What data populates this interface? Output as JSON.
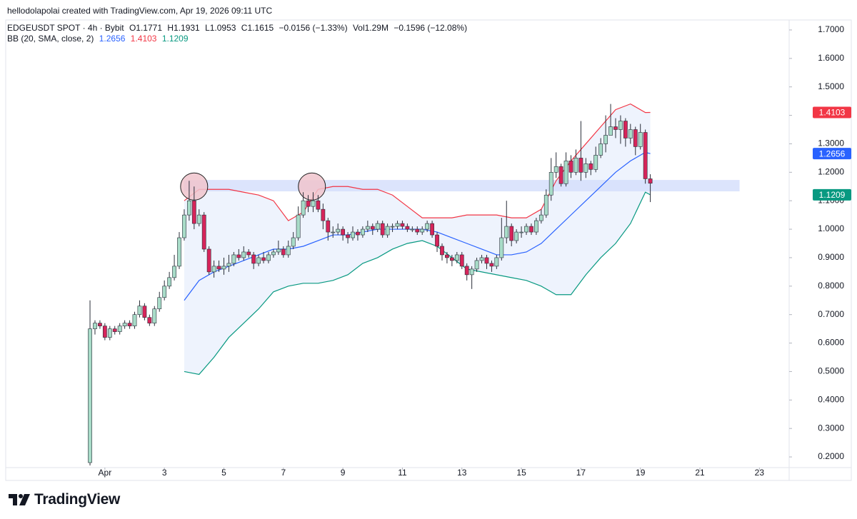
{
  "header": {
    "attribution": "hellodolapolai created with TradingView.com, Apr 19, 2026 09:11 UTC"
  },
  "chart_data": {
    "type": "candlestick",
    "title": "EDGEUSDT SPOT · 4h · Bybit",
    "ohlc_labels": [
      "O1.1771",
      "H1.1931",
      "L1.0953",
      "C1.1615",
      "−0.0156 (−1.33%)",
      "Vol1.29M",
      "−0.1596 (−12.08%)"
    ],
    "indicator": "BB (20, SMA, close, 2)",
    "up_color": "#a8dcc8",
    "down_color": "#d6245a",
    "wick_color": "#2a2e39",
    "x": [
      -12,
      -8,
      -4,
      0,
      4,
      8,
      12,
      16,
      20,
      24,
      28,
      32,
      36,
      40,
      44,
      48,
      52,
      56,
      60,
      64,
      68,
      72,
      76,
      80,
      84,
      88,
      92,
      96,
      100,
      104,
      108,
      112,
      116,
      120,
      124,
      128,
      132,
      136,
      140,
      144,
      148,
      152,
      156,
      160,
      164,
      168,
      172,
      176,
      180,
      184,
      188,
      192,
      196,
      200,
      204,
      208,
      212,
      216,
      220,
      224,
      228,
      232,
      236,
      240,
      244,
      248,
      252,
      256,
      260,
      264,
      268,
      272,
      276,
      280,
      284,
      288,
      292,
      296,
      300,
      304,
      308,
      312,
      316,
      320,
      324,
      328,
      332,
      336,
      340,
      344,
      348,
      352,
      356,
      360,
      364,
      368,
      372,
      376,
      380,
      384,
      388,
      392,
      396,
      400,
      404,
      408,
      412,
      416,
      420,
      424,
      428,
      432,
      436,
      440
    ],
    "open": [
      0.18,
      0.65,
      0.67,
      0.66,
      0.62,
      0.65,
      0.64,
      0.66,
      0.67,
      0.66,
      0.7,
      0.73,
      0.69,
      0.67,
      0.72,
      0.76,
      0.8,
      0.83,
      0.87,
      0.97,
      1.05,
      1.1,
      1.02,
      1.05,
      0.93,
      0.85,
      0.87,
      0.86,
      0.87,
      0.88,
      0.91,
      0.9,
      0.92,
      0.91,
      0.88,
      0.9,
      0.89,
      0.91,
      0.92,
      0.93,
      0.91,
      0.94,
      0.97,
      1.05,
      1.1,
      1.08,
      1.1,
      1.07,
      1.03,
      0.99,
      0.99,
      1.0,
      0.98,
      0.97,
      0.99,
      0.98,
      1.0,
      1.01,
      1.0,
      1.02,
      0.98,
      1.01,
      1.01,
      1.02,
      1.01,
      1.0,
      1.0,
      0.99,
      1.0,
      1.02,
      0.98,
      0.94,
      0.91,
      0.9,
      0.89,
      0.91,
      0.87,
      0.84,
      0.86,
      0.89,
      0.9,
      0.88,
      0.87,
      0.9,
      0.97,
      1.01,
      0.96,
      0.99,
      0.99,
      1.01,
      0.99,
      1.03,
      1.05,
      1.12,
      1.2,
      1.22,
      1.16,
      1.24,
      1.2,
      1.25,
      1.2,
      1.23,
      1.21,
      1.26,
      1.3,
      1.33,
      1.36,
      1.35,
      1.38,
      1.32,
      1.35,
      1.29,
      1.34,
      1.1771
    ],
    "high": [
      0.75,
      0.68,
      0.68,
      0.67,
      0.66,
      0.66,
      0.67,
      0.68,
      0.68,
      0.71,
      0.75,
      0.74,
      0.7,
      0.73,
      0.78,
      0.82,
      0.85,
      0.91,
      0.99,
      1.07,
      1.17,
      1.15,
      1.07,
      1.06,
      0.94,
      0.89,
      0.89,
      0.9,
      0.91,
      0.92,
      0.93,
      0.94,
      0.93,
      0.92,
      0.91,
      0.92,
      0.92,
      0.93,
      0.96,
      0.94,
      0.96,
      0.99,
      1.08,
      1.13,
      1.12,
      1.13,
      1.12,
      1.09,
      1.04,
      1.01,
      1.02,
      1.01,
      0.99,
      1.01,
      1.0,
      1.01,
      1.03,
      1.02,
      1.03,
      1.03,
      1.02,
      1.02,
      1.03,
      1.03,
      1.02,
      1.01,
      1.01,
      1.01,
      1.03,
      1.03,
      0.99,
      0.95,
      0.92,
      0.91,
      0.92,
      0.92,
      0.88,
      0.87,
      0.9,
      0.91,
      0.91,
      0.89,
      0.91,
      1.04,
      1.1,
      1.02,
      1.0,
      1.01,
      1.02,
      1.02,
      1.04,
      1.07,
      1.14,
      1.25,
      1.27,
      1.23,
      1.27,
      1.26,
      1.28,
      1.38,
      1.25,
      1.24,
      1.29,
      1.32,
      1.4,
      1.44,
      1.39,
      1.4,
      1.39,
      1.37,
      1.36,
      1.37,
      1.35,
      1.1931
    ],
    "low": [
      0.17,
      0.63,
      0.65,
      0.61,
      0.61,
      0.63,
      0.63,
      0.65,
      0.65,
      0.65,
      0.69,
      0.68,
      0.66,
      0.66,
      0.71,
      0.75,
      0.79,
      0.82,
      0.86,
      0.96,
      1.03,
      1.0,
      1.01,
      0.92,
      0.84,
      0.83,
      0.85,
      0.84,
      0.85,
      0.87,
      0.89,
      0.89,
      0.9,
      0.86,
      0.87,
      0.88,
      0.88,
      0.9,
      0.91,
      0.9,
      0.9,
      0.93,
      0.96,
      1.04,
      1.06,
      1.06,
      1.06,
      1.0,
      0.96,
      0.97,
      0.98,
      0.96,
      0.95,
      0.96,
      0.96,
      0.97,
      0.99,
      0.98,
      0.99,
      0.97,
      0.97,
      0.99,
      1.0,
      1.0,
      0.99,
      0.99,
      0.98,
      0.98,
      0.99,
      0.97,
      0.92,
      0.89,
      0.88,
      0.87,
      0.88,
      0.86,
      0.82,
      0.79,
      0.85,
      0.88,
      0.86,
      0.85,
      0.86,
      0.89,
      0.95,
      0.94,
      0.95,
      0.97,
      0.98,
      0.98,
      0.98,
      1.02,
      1.04,
      1.1,
      1.18,
      1.15,
      1.15,
      1.18,
      1.19,
      1.17,
      1.18,
      1.19,
      1.2,
      1.25,
      1.27,
      1.33,
      1.32,
      1.3,
      1.29,
      1.3,
      1.26,
      1.28,
      1.16,
      1.0953
    ],
    "close": [
      0.65,
      0.67,
      0.66,
      0.62,
      0.65,
      0.64,
      0.66,
      0.67,
      0.66,
      0.7,
      0.73,
      0.69,
      0.67,
      0.72,
      0.76,
      0.8,
      0.83,
      0.87,
      0.97,
      1.05,
      1.1,
      1.02,
      1.05,
      0.93,
      0.85,
      0.87,
      0.86,
      0.87,
      0.88,
      0.91,
      0.9,
      0.92,
      0.91,
      0.88,
      0.9,
      0.89,
      0.91,
      0.92,
      0.93,
      0.91,
      0.94,
      0.97,
      1.05,
      1.1,
      1.08,
      1.1,
      1.07,
      1.03,
      0.99,
      0.99,
      1.0,
      0.98,
      0.97,
      0.99,
      0.98,
      1.0,
      1.01,
      1.0,
      1.02,
      0.98,
      1.01,
      1.01,
      1.02,
      1.01,
      1.0,
      1.0,
      0.99,
      1.0,
      1.02,
      0.98,
      0.94,
      0.91,
      0.9,
      0.89,
      0.91,
      0.87,
      0.84,
      0.86,
      0.89,
      0.9,
      0.88,
      0.87,
      0.9,
      0.97,
      1.01,
      0.96,
      0.99,
      0.99,
      1.01,
      0.99,
      1.03,
      1.05,
      1.12,
      1.2,
      1.22,
      1.16,
      1.24,
      1.2,
      1.25,
      1.2,
      1.23,
      1.21,
      1.26,
      1.3,
      1.33,
      1.36,
      1.35,
      1.38,
      1.32,
      1.35,
      1.29,
      1.34,
      1.1771,
      1.1615
    ],
    "bands": {
      "x": [
        64,
        76,
        88,
        100,
        112,
        124,
        136,
        148,
        160,
        172,
        184,
        196,
        208,
        220,
        232,
        244,
        256,
        268,
        280,
        292,
        304,
        316,
        328,
        340,
        352,
        364,
        376,
        388,
        400,
        412,
        424,
        436,
        440
      ],
      "fill": "#eef3fd",
      "series": [
        {
          "color": "#2962ff",
          "values": [
            0.75,
            0.82,
            0.85,
            0.87,
            0.89,
            0.91,
            0.93,
            0.93,
            0.94,
            0.96,
            0.98,
            0.98,
            0.99,
            1.0,
            1.0,
            1.0,
            1.0,
            0.99,
            0.97,
            0.95,
            0.93,
            0.91,
            0.91,
            0.92,
            0.95,
            1.0,
            1.05,
            1.1,
            1.15,
            1.2,
            1.24,
            1.27,
            1.2656
          ]
        },
        {
          "color": "#f23645",
          "values": [
            1.1,
            1.14,
            1.14,
            1.14,
            1.13,
            1.12,
            1.1,
            1.03,
            1.06,
            1.14,
            1.15,
            1.15,
            1.14,
            1.14,
            1.12,
            1.08,
            1.04,
            1.04,
            1.04,
            1.05,
            1.05,
            1.05,
            1.04,
            1.04,
            1.07,
            1.17,
            1.24,
            1.3,
            1.36,
            1.42,
            1.44,
            1.41,
            1.4103
          ]
        },
        {
          "color": "#089981",
          "values": [
            0.5,
            0.49,
            0.55,
            0.62,
            0.67,
            0.72,
            0.78,
            0.8,
            0.81,
            0.81,
            0.82,
            0.84,
            0.88,
            0.9,
            0.93,
            0.95,
            0.96,
            0.94,
            0.9,
            0.86,
            0.85,
            0.84,
            0.83,
            0.82,
            0.8,
            0.77,
            0.77,
            0.84,
            0.9,
            0.95,
            1.02,
            1.13,
            1.1209
          ]
        }
      ]
    },
    "zone": {
      "x": [
        64,
        512
      ],
      "y": [
        1.133,
        1.173
      ],
      "color": "#d3ddfb"
    },
    "circles": [
      {
        "x": 72,
        "y": 1.15
      },
      {
        "x": 167,
        "y": 1.15
      }
    ],
    "circle_color": "#f0c4cd",
    "xlim": [
      -80,
      552
    ],
    "ylim": [
      0.1625,
      1.735
    ],
    "xticks": [
      {
        "value": 0,
        "label": "Apr"
      },
      {
        "value": 48,
        "label": "3"
      },
      {
        "value": 96,
        "label": "5"
      },
      {
        "value": 144,
        "label": "7"
      },
      {
        "value": 192,
        "label": "9"
      },
      {
        "value": 240,
        "label": "11"
      },
      {
        "value": 288,
        "label": "13"
      },
      {
        "value": 336,
        "label": "15"
      },
      {
        "value": 384,
        "label": "17"
      },
      {
        "value": 432,
        "label": "19"
      },
      {
        "value": 480,
        "label": "21"
      },
      {
        "value": 528,
        "label": "23"
      }
    ],
    "yticks": [
      {
        "value": 0.2,
        "label": "0.2000"
      },
      {
        "value": 0.3,
        "label": "0.3000"
      },
      {
        "value": 0.4,
        "label": "0.4000"
      },
      {
        "value": 0.5,
        "label": "0.5000"
      },
      {
        "value": 0.6,
        "label": "0.6000"
      },
      {
        "value": 0.7,
        "label": "0.7000"
      },
      {
        "value": 0.8,
        "label": "0.8000"
      },
      {
        "value": 0.9,
        "label": "0.9000"
      },
      {
        "value": 1.0,
        "label": "1.0000"
      },
      {
        "value": 1.1,
        "label": "1.1000"
      },
      {
        "value": 1.2,
        "label": "1.2000"
      },
      {
        "value": 1.3,
        "label": "1.3000"
      },
      {
        "value": 1.4,
        "label": "1.4000"
      },
      {
        "value": 1.5,
        "label": "1.5000"
      },
      {
        "value": 1.6,
        "label": "1.6000"
      },
      {
        "value": 1.7,
        "label": "1.7000"
      }
    ],
    "grid": false
  },
  "footer": {
    "brand": "TradingView"
  }
}
